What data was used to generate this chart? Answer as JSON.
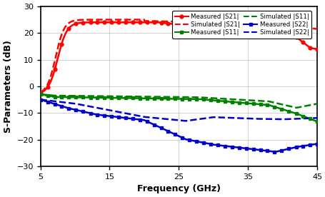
{
  "xlabel": "Frequency (GHz)",
  "ylabel": "S-Parameters (dB)",
  "xlim": [
    5,
    45
  ],
  "ylim": [
    -30,
    30
  ],
  "xticks": [
    5,
    15,
    25,
    35,
    45
  ],
  "yticks": [
    -30,
    -20,
    -10,
    0,
    10,
    20,
    30
  ],
  "colors": {
    "S21": "#ff0000",
    "S11": "#008000",
    "S22": "#0000cc"
  },
  "background_color": "#ffffff",
  "grid_color": "#999999"
}
